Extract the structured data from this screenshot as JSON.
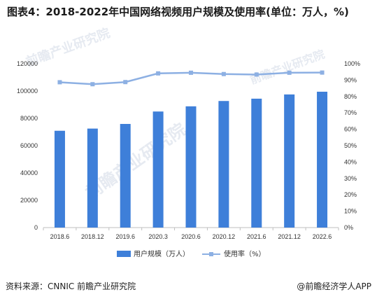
{
  "title": "图表4：2018-2022年中国网络视频用户规模及使用率(单位：万人，%)",
  "source": "资料来源：CNNIC 前瞻产业研究院",
  "brand": "@前瞻经济学人APP",
  "watermark": "前瞻产业研究院",
  "colors": {
    "bar": "#3e7fd9",
    "line": "#8db0e3",
    "axis": "#bfbfbf"
  },
  "chart_data": {
    "type": "bar",
    "categories": [
      "2018.6",
      "2018.12",
      "2019.6",
      "2020.3",
      "2020.6",
      "2020.12",
      "2021.6",
      "2021.12",
      "2022.6"
    ],
    "series": [
      {
        "name": "用户规模（万人）",
        "type": "bar",
        "axis": "left",
        "values": [
          70900,
          72500,
          75900,
          85000,
          88800,
          92700,
          94400,
          97500,
          99500
        ]
      },
      {
        "name": "使用率（%）",
        "type": "line",
        "axis": "right",
        "values": [
          88.7,
          87.5,
          88.8,
          94.1,
          94.5,
          93.7,
          93.4,
          94.5,
          94.6
        ]
      }
    ],
    "y_left": {
      "range": [
        0,
        120000
      ],
      "ticks": [
        "0",
        "20000",
        "40000",
        "60000",
        "80000",
        "100000",
        "120000"
      ]
    },
    "y_right": {
      "range": [
        0,
        100
      ],
      "ticks": [
        "0%",
        "10%",
        "20%",
        "30%",
        "40%",
        "50%",
        "60%",
        "70%",
        "80%",
        "90%",
        "100%"
      ]
    },
    "grid": false,
    "legend_position": "bottom"
  }
}
